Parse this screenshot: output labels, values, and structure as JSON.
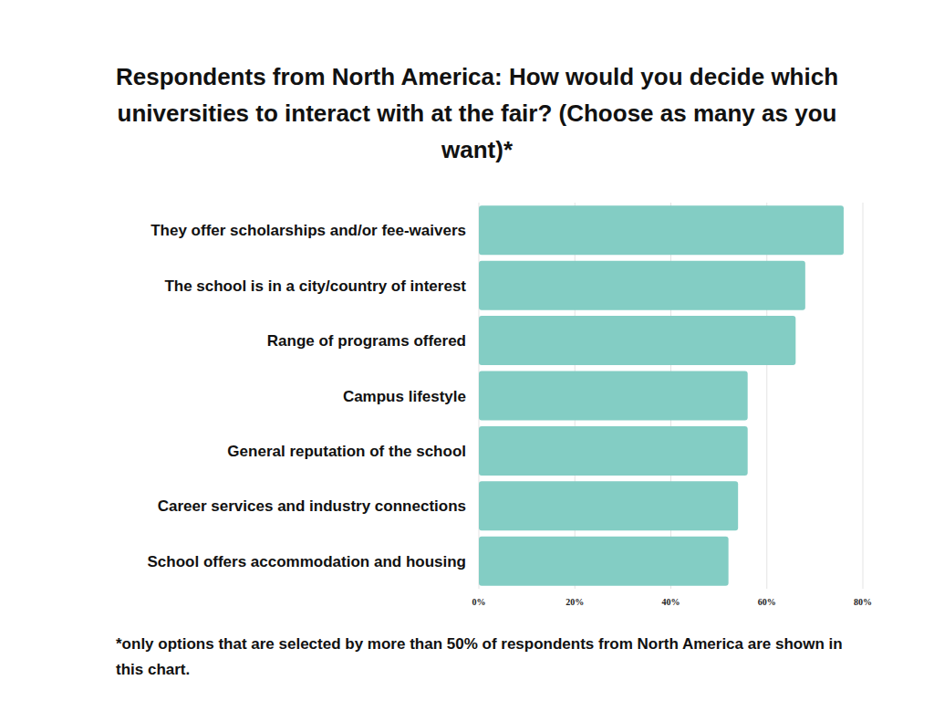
{
  "chart_data": {
    "type": "bar",
    "orientation": "horizontal",
    "title": "Respondents from North America: How would you decide which universities to interact with at the fair? (Choose as many as you want)*",
    "categories": [
      "They offer scholarships and/or fee-waivers",
      "The school is in a city/country of interest",
      "Range of programs offered",
      "Campus lifestyle",
      "General reputation of the school",
      "Career services and industry connections",
      "School offers accommodation and housing"
    ],
    "values": [
      76,
      68,
      66,
      56,
      56,
      54,
      52
    ],
    "color": "#83cdc4",
    "xlim": [
      0,
      80
    ],
    "xticks": [
      {
        "value": 0,
        "label": "0%"
      },
      {
        "value": 20,
        "label": "20%"
      },
      {
        "value": 40,
        "label": "40%"
      },
      {
        "value": 60,
        "label": "60%"
      },
      {
        "value": 80,
        "label": "80%"
      }
    ],
    "grid": true,
    "footnote": "*only options that are selected by more than 50% of respondents from North America are shown in this chart."
  }
}
